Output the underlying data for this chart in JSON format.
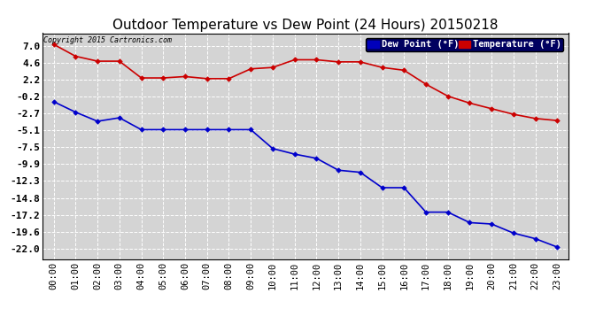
{
  "title": "Outdoor Temperature vs Dew Point (24 Hours) 20150218",
  "copyright": "Copyright 2015 Cartronics.com",
  "legend_dew": "Dew Point (°F)",
  "legend_temp": "Temperature (°F)",
  "x_labels": [
    "00:00",
    "01:00",
    "02:00",
    "03:00",
    "04:00",
    "05:00",
    "06:00",
    "07:00",
    "08:00",
    "09:00",
    "10:00",
    "11:00",
    "12:00",
    "13:00",
    "14:00",
    "15:00",
    "16:00",
    "17:00",
    "18:00",
    "19:00",
    "20:00",
    "21:00",
    "22:00",
    "23:00"
  ],
  "temp_data": [
    7.2,
    5.5,
    4.8,
    4.8,
    2.4,
    2.4,
    2.6,
    2.3,
    2.3,
    3.7,
    3.9,
    5.0,
    5.0,
    4.7,
    4.7,
    3.9,
    3.5,
    1.5,
    -0.2,
    -1.2,
    -2.0,
    -2.8,
    -3.4,
    -3.7
  ],
  "dew_data": [
    -1.0,
    -2.5,
    -3.8,
    -3.3,
    -5.0,
    -5.0,
    -5.0,
    -5.0,
    -5.0,
    -5.0,
    -7.7,
    -8.5,
    -9.1,
    -10.8,
    -11.1,
    -13.3,
    -13.3,
    -16.8,
    -16.8,
    -18.3,
    -18.5,
    -19.8,
    -20.6,
    -21.8
  ],
  "ylim_min": -23.5,
  "ylim_max": 8.8,
  "yticks": [
    7.0,
    4.6,
    2.2,
    -0.2,
    -2.7,
    -5.1,
    -7.5,
    -9.9,
    -12.3,
    -14.8,
    -17.2,
    -19.6,
    -22.0
  ],
  "temp_color": "#cc0000",
  "dew_color": "#0000cc",
  "bg_color": "#ffffff",
  "plot_bg_color": "#d4d4d4",
  "grid_color": "#ffffff",
  "title_fontsize": 11,
  "tick_fontsize": 7.5,
  "ytick_fontsize": 8
}
